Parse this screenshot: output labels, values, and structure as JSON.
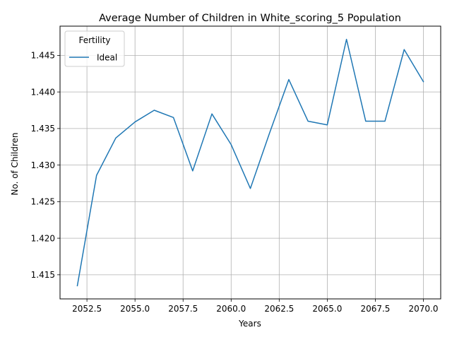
{
  "chart_data": {
    "type": "line",
    "title": "Average Number of Children in White_scoring_5 Population",
    "xlabel": "Years",
    "ylabel": "No. of Children",
    "xlim": [
      2051.1,
      2070.9
    ],
    "ylim": [
      1.4117,
      1.449
    ],
    "x_ticks": [
      2052.5,
      2055.0,
      2057.5,
      2060.0,
      2062.5,
      2065.0,
      2067.5,
      2070.0
    ],
    "x_tick_labels": [
      "2052.5",
      "2055.0",
      "2057.5",
      "2060.0",
      "2062.5",
      "2065.0",
      "2067.5",
      "2070.0"
    ],
    "y_ticks": [
      1.415,
      1.42,
      1.425,
      1.43,
      1.435,
      1.44,
      1.445
    ],
    "y_tick_labels": [
      "1.415",
      "1.420",
      "1.425",
      "1.430",
      "1.435",
      "1.440",
      "1.445"
    ],
    "grid": true,
    "legend": {
      "title": "Fertility",
      "placement": "top-left"
    },
    "series": [
      {
        "name": "Ideal",
        "color": "#1f77b4",
        "x": [
          2052,
          2053,
          2054,
          2055,
          2056,
          2057,
          2058,
          2059,
          2060,
          2061,
          2062,
          2063,
          2064,
          2065,
          2066,
          2067,
          2068,
          2069,
          2070
        ],
        "y": [
          1.4135,
          1.4286,
          1.4337,
          1.4359,
          1.4375,
          1.4365,
          1.4292,
          1.437,
          1.4328,
          1.4268,
          1.4344,
          1.4417,
          1.436,
          1.4355,
          1.4472,
          1.436,
          1.436,
          1.4458,
          1.4414
        ]
      }
    ]
  }
}
